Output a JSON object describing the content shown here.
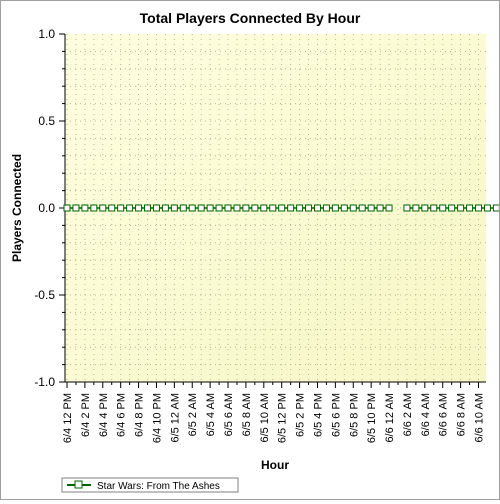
{
  "chart_data": {
    "type": "line",
    "title": "Total Players Connected By Hour",
    "xlabel": "Hour",
    "ylabel": "Players Connected",
    "ylim": [
      -1.0,
      1.0
    ],
    "yticks": [
      "1.0",
      "0.5",
      "0.0",
      "-0.5",
      "-1.0"
    ],
    "ytick_values": [
      1.0,
      0.5,
      0.0,
      -0.5,
      -1.0
    ],
    "categories": [
      "6/4 12 PM",
      "6/4 2 PM",
      "6/4 4 PM",
      "6/4 6 PM",
      "6/4 8 PM",
      "6/4 10 PM",
      "6/5 12 AM",
      "6/5 2 AM",
      "6/5 4 AM",
      "6/5 6 AM",
      "6/5 8 AM",
      "6/5 10 AM",
      "6/5 12 PM",
      "6/5 2 PM",
      "6/5 4 PM",
      "6/5 6 PM",
      "6/5 8 PM",
      "6/5 10 PM",
      "6/6 12 AM",
      "6/6 2 AM",
      "6/6 4 AM",
      "6/6 6 AM",
      "6/6 8 AM",
      "6/6 10 AM"
    ],
    "grid": true,
    "legend_position": "bottom-left",
    "series": [
      {
        "name": "Star Wars: From The Ashes",
        "color": "#006400",
        "segments": [
          {
            "values": [
              0,
              0,
              0,
              0,
              0,
              0,
              0,
              0,
              0,
              0,
              0,
              0,
              0,
              0,
              0,
              0,
              0,
              0,
              0,
              0,
              0,
              0,
              0,
              0,
              0,
              0,
              0,
              0,
              0,
              0,
              0,
              0,
              0,
              0,
              0,
              0,
              0
            ],
            "start_hour": 0
          },
          {
            "values": [
              0,
              0,
              0,
              0,
              0,
              0,
              0,
              0,
              0,
              0,
              0,
              0
            ],
            "start_hour": 38
          }
        ]
      }
    ]
  }
}
